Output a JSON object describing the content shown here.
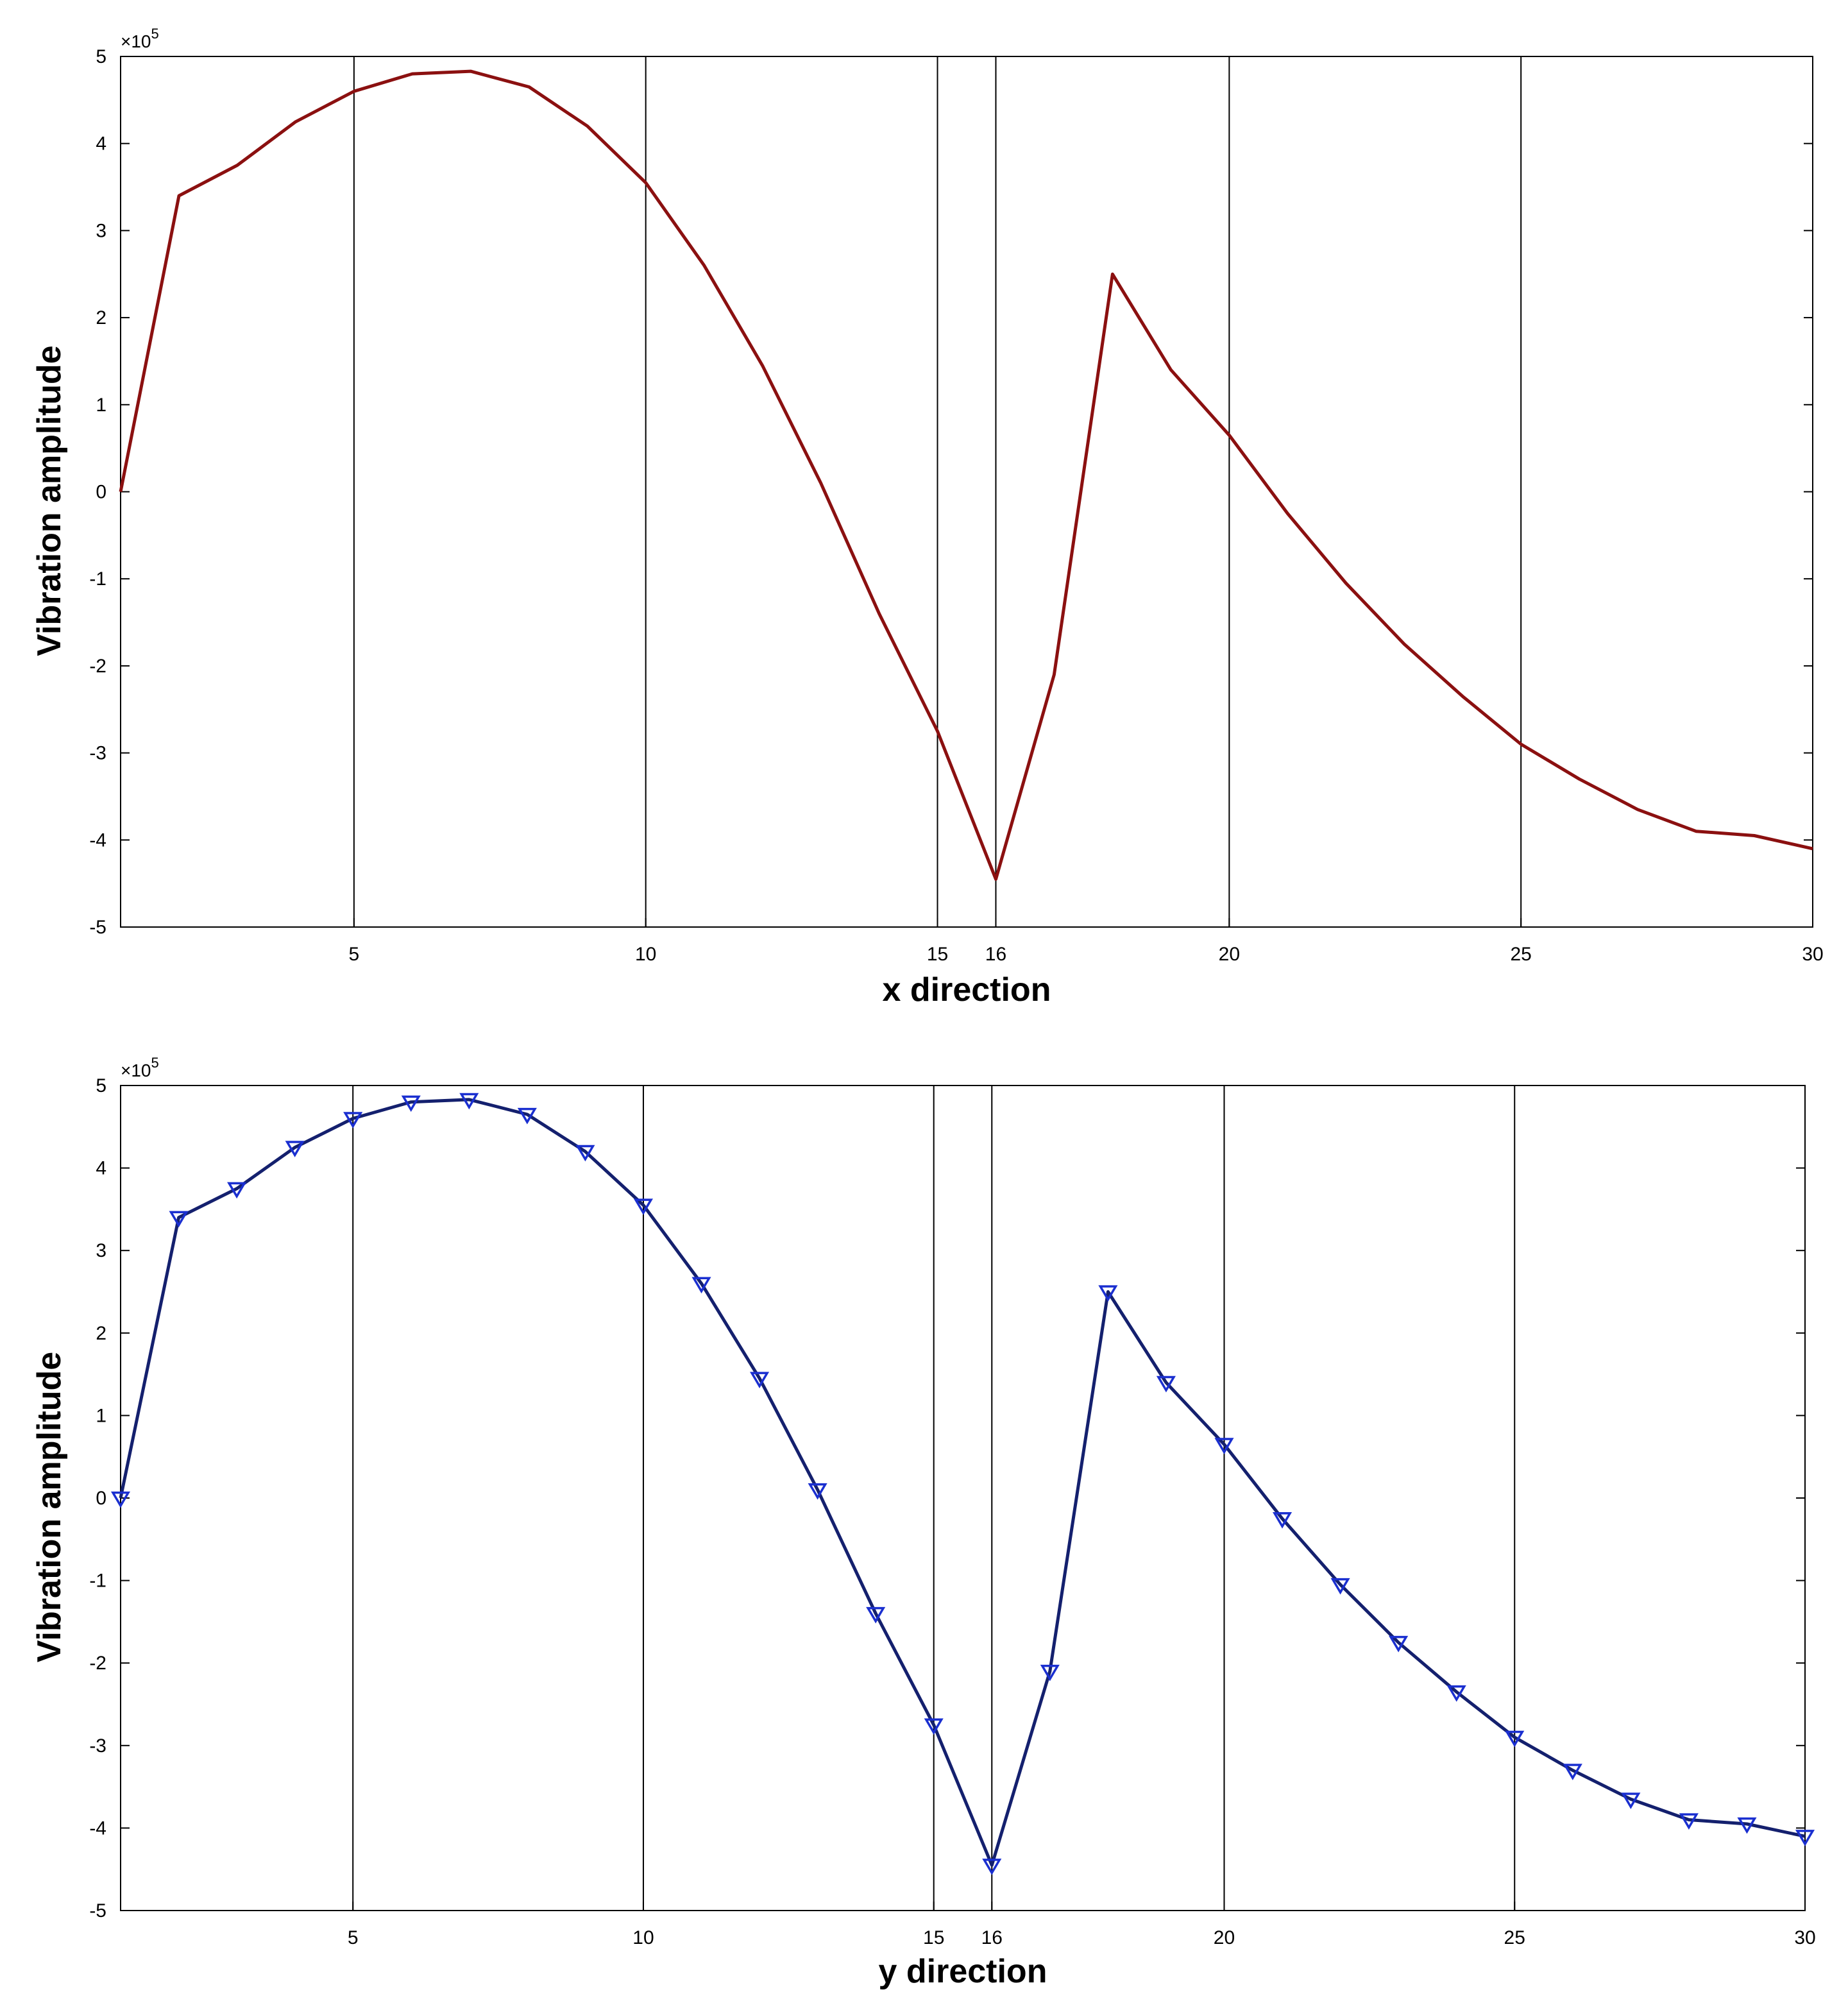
{
  "chart_data": [
    {
      "type": "line",
      "xlabel": "x direction",
      "ylabel": "Vibration amplitude",
      "y_multiplier": "×10",
      "y_multiplier_exp": "5",
      "xlim": [
        1,
        30
      ],
      "ylim": [
        -5,
        5
      ],
      "xticks": [
        5,
        10,
        15,
        16,
        20,
        25,
        30
      ],
      "yticks": [
        -5,
        -4,
        -3,
        -2,
        -1,
        0,
        1,
        2,
        3,
        4,
        5
      ],
      "vlines": [
        5,
        10,
        15,
        16,
        20,
        25
      ],
      "markers": false,
      "color": "#8b1010",
      "series": [
        {
          "x": [
            1,
            2,
            3,
            4,
            5,
            6,
            7,
            8,
            9,
            10,
            11,
            12,
            13,
            14,
            15,
            16,
            17,
            18,
            19,
            20,
            21,
            22,
            23,
            24,
            25,
            26,
            27,
            28,
            29,
            30
          ],
          "values": [
            0.0,
            3.4,
            3.75,
            4.25,
            4.6,
            4.8,
            4.83,
            4.65,
            4.2,
            3.55,
            2.6,
            1.45,
            0.1,
            -1.4,
            -2.75,
            -4.45,
            -2.1,
            2.5,
            1.4,
            0.65,
            -0.25,
            -1.05,
            -1.75,
            -2.35,
            -2.9,
            -3.3,
            -3.65,
            -3.9,
            -3.95,
            -4.1
          ]
        }
      ]
    },
    {
      "type": "line",
      "xlabel": "y direction",
      "ylabel": "Vibration amplitude",
      "y_multiplier": "×10",
      "y_multiplier_exp": "5",
      "xlim": [
        1,
        30
      ],
      "ylim": [
        -5,
        5
      ],
      "xticks": [
        5,
        10,
        15,
        16,
        20,
        25,
        30
      ],
      "yticks": [
        -5,
        -4,
        -3,
        -2,
        -1,
        0,
        1,
        2,
        3,
        4,
        5
      ],
      "vlines": [
        5,
        10,
        15,
        16,
        20,
        25
      ],
      "markers": true,
      "marker": "triangle-down",
      "color": "#14206e",
      "marker_color": "#1a2fd0",
      "series": [
        {
          "x": [
            1,
            2,
            3,
            4,
            5,
            6,
            7,
            8,
            9,
            10,
            11,
            12,
            13,
            14,
            15,
            16,
            17,
            18,
            19,
            20,
            21,
            22,
            23,
            24,
            25,
            26,
            27,
            28,
            29,
            30
          ],
          "values": [
            0.0,
            3.4,
            3.75,
            4.25,
            4.6,
            4.8,
            4.83,
            4.65,
            4.2,
            3.55,
            2.6,
            1.45,
            0.1,
            -1.4,
            -2.75,
            -4.45,
            -2.1,
            2.5,
            1.4,
            0.65,
            -0.25,
            -1.05,
            -1.75,
            -2.35,
            -2.9,
            -3.3,
            -3.65,
            -3.9,
            -3.95,
            -4.1
          ]
        }
      ]
    }
  ]
}
